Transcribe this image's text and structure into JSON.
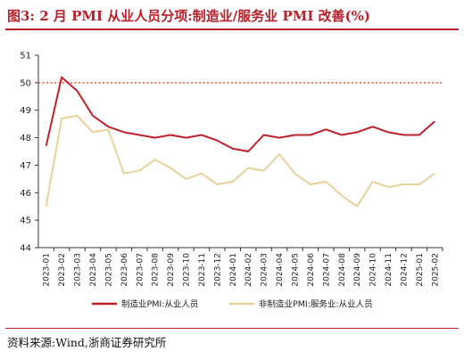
{
  "title": "图3:  2 月 PMI 从业人员分项:制造业/服务业 PMI 改善(%)",
  "source": "资料来源:Wind,浙商证券研究所",
  "colors": {
    "series1": "#c0202a",
    "series2": "#e8d29a",
    "reference": "#e8503a"
  },
  "chart_data": {
    "type": "line",
    "title": "图3:  2 月 PMI 从业人员分项:制造业/服务业 PMI 改善(%)",
    "xlabel": "",
    "ylabel": "",
    "ylim": [
      44,
      51
    ],
    "yticks": [
      "51",
      "50",
      "49",
      "48",
      "47",
      "46",
      "45",
      "44"
    ],
    "categories": [
      "2023-01",
      "2023-02",
      "2023-03",
      "2023-04",
      "2023-05",
      "2023-06",
      "2023-07",
      "2023-08",
      "2023-09",
      "2023-10",
      "2023-11",
      "2023-12",
      "2024-01",
      "2024-02",
      "2024-03",
      "2024-04",
      "2024-05",
      "2024-06",
      "2024-07",
      "2024-08",
      "2024-09",
      "2024-10",
      "2024-11",
      "2024-12",
      "2025-01",
      "2025-02"
    ],
    "reference_line": 50,
    "grid": false,
    "legend_position": "bottom",
    "series": [
      {
        "name": "制造业PMI:从业人员",
        "values": [
          47.7,
          50.2,
          49.7,
          48.8,
          48.4,
          48.2,
          48.1,
          48.0,
          48.1,
          48.0,
          48.1,
          47.9,
          47.6,
          47.5,
          48.1,
          48.0,
          48.1,
          48.1,
          48.3,
          48.1,
          48.2,
          48.4,
          48.2,
          48.1,
          48.1,
          48.6
        ]
      },
      {
        "name": "非制造业PMI:服务业:从业人员",
        "values": [
          45.5,
          48.7,
          48.8,
          48.2,
          48.3,
          46.7,
          46.8,
          47.2,
          46.9,
          46.5,
          46.7,
          46.3,
          46.4,
          46.9,
          46.8,
          47.4,
          46.7,
          46.3,
          46.4,
          45.9,
          45.5,
          46.4,
          46.2,
          46.3,
          46.3,
          46.7
        ]
      }
    ]
  }
}
